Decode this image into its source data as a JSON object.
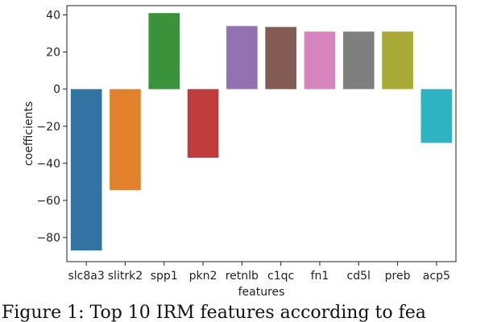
{
  "chart_data": {
    "type": "bar",
    "title": "",
    "xlabel": "features",
    "ylabel": "coefficients",
    "categories": [
      "slc8a3",
      "slitrk2",
      "spp1",
      "pkn2",
      "retnlb",
      "c1qc",
      "fn1",
      "cd5l",
      "preb",
      "acp5"
    ],
    "values": [
      -87,
      -54.5,
      41,
      -37,
      34,
      33.5,
      31,
      31,
      31,
      -29
    ],
    "ylim": [
      -93,
      45
    ],
    "yticks": [
      -80,
      -60,
      -40,
      -20,
      0,
      20,
      40
    ],
    "ytick_labels": [
      "−80",
      "−60",
      "−40",
      "−20",
      "0",
      "20",
      "40"
    ],
    "colors": [
      "#3274a1",
      "#e1812c",
      "#3a923a",
      "#c03d3e",
      "#9372b2",
      "#845b53",
      "#d684bd",
      "#7f7f7f",
      "#a9aa35",
      "#2eb3c2"
    ],
    "grid": false,
    "legend": "none"
  },
  "caption": {
    "text": "Figure 1: Top 10 IRM features according to fea"
  }
}
